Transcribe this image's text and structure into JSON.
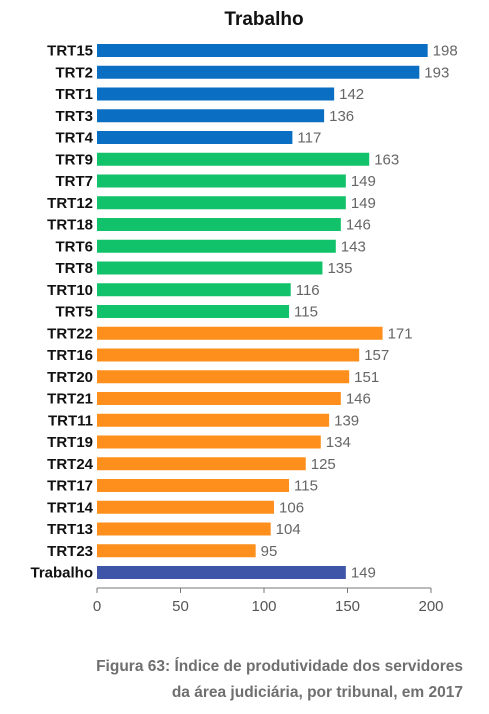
{
  "chart_data": {
    "type": "bar",
    "orientation": "horizontal",
    "title": "Trabalho",
    "categories": [
      "TRT15",
      "TRT2",
      "TRT1",
      "TRT3",
      "TRT4",
      "TRT9",
      "TRT7",
      "TRT12",
      "TRT18",
      "TRT6",
      "TRT8",
      "TRT10",
      "TRT5",
      "TRT22",
      "TRT16",
      "TRT20",
      "TRT21",
      "TRT11",
      "TRT19",
      "TRT24",
      "TRT17",
      "TRT14",
      "TRT13",
      "TRT23",
      "Trabalho"
    ],
    "values": [
      198,
      193,
      142,
      136,
      117,
      163,
      149,
      149,
      146,
      143,
      135,
      116,
      115,
      171,
      157,
      151,
      146,
      139,
      134,
      125,
      115,
      106,
      104,
      95,
      149
    ],
    "bar_colors": [
      "#0a6fc2",
      "#0a6fc2",
      "#0a6fc2",
      "#0a6fc2",
      "#0a6fc2",
      "#12c26a",
      "#12c26a",
      "#12c26a",
      "#12c26a",
      "#12c26a",
      "#12c26a",
      "#12c26a",
      "#12c26a",
      "#fe8f1c",
      "#fe8f1c",
      "#fe8f1c",
      "#fe8f1c",
      "#fe8f1c",
      "#fe8f1c",
      "#fe8f1c",
      "#fe8f1c",
      "#fe8f1c",
      "#fe8f1c",
      "#fe8f1c",
      "#3f55a8"
    ],
    "xlim": [
      0,
      200
    ],
    "xticks": [
      0,
      50,
      100,
      150,
      200
    ],
    "grid": false,
    "data_labels": true
  },
  "caption": {
    "line1": "Figura 63: Índice de produtividade dos servidores",
    "line2": "da área judiciária, por tribunal, em 2017"
  }
}
